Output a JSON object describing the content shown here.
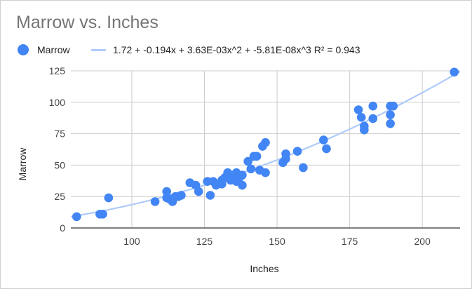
{
  "chart_data": {
    "type": "scatter",
    "title": "Marrow vs. Inches",
    "xlabel": "Inches",
    "ylabel": "Marrow",
    "xlim": [
      79,
      213
    ],
    "ylim": [
      0,
      125
    ],
    "xticks": [
      100,
      125,
      150,
      175,
      200
    ],
    "yticks": [
      0,
      25,
      50,
      75,
      100,
      125
    ],
    "grid": true,
    "legend_position": "top-left",
    "series": [
      {
        "name": "Marrow",
        "color": "#4285f4",
        "points": [
          [
            81,
            9
          ],
          [
            89,
            11
          ],
          [
            90,
            11
          ],
          [
            92,
            24
          ],
          [
            108,
            21
          ],
          [
            112,
            24
          ],
          [
            112,
            29
          ],
          [
            113,
            23
          ],
          [
            114,
            21
          ],
          [
            115,
            25
          ],
          [
            116,
            25
          ],
          [
            117,
            26
          ],
          [
            120,
            36
          ],
          [
            122,
            34
          ],
          [
            123,
            29
          ],
          [
            126,
            37
          ],
          [
            127,
            26
          ],
          [
            128,
            37
          ],
          [
            129,
            34
          ],
          [
            131,
            38
          ],
          [
            131,
            35
          ],
          [
            132,
            40
          ],
          [
            133,
            44
          ],
          [
            134,
            38
          ],
          [
            135,
            42
          ],
          [
            136,
            44
          ],
          [
            136,
            37
          ],
          [
            137,
            40
          ],
          [
            138,
            34
          ],
          [
            138,
            42
          ],
          [
            140,
            53
          ],
          [
            141,
            47
          ],
          [
            142,
            57
          ],
          [
            143,
            57
          ],
          [
            144,
            46
          ],
          [
            145,
            65
          ],
          [
            146,
            68
          ],
          [
            146,
            44
          ],
          [
            152,
            52
          ],
          [
            153,
            59
          ],
          [
            153,
            55
          ],
          [
            157,
            61
          ],
          [
            159,
            48
          ],
          [
            166,
            70
          ],
          [
            167,
            63
          ],
          [
            178,
            94
          ],
          [
            179,
            88
          ],
          [
            180,
            81
          ],
          [
            180,
            78
          ],
          [
            183,
            97
          ],
          [
            183,
            87
          ],
          [
            189,
            97
          ],
          [
            189,
            90
          ],
          [
            189,
            83
          ],
          [
            190,
            97
          ],
          [
            211,
            124
          ]
        ]
      }
    ],
    "trendline": {
      "type": "polynomial",
      "degree": 3,
      "label": "1.72 + -0.194x + 3.63E-03x^2 + -5.81E-08x^3 R² = 0.943",
      "coefficients": [
        1.72,
        -0.194,
        0.00363,
        -5.81e-08
      ],
      "r_squared": 0.943,
      "color": "#aecbfa"
    }
  }
}
